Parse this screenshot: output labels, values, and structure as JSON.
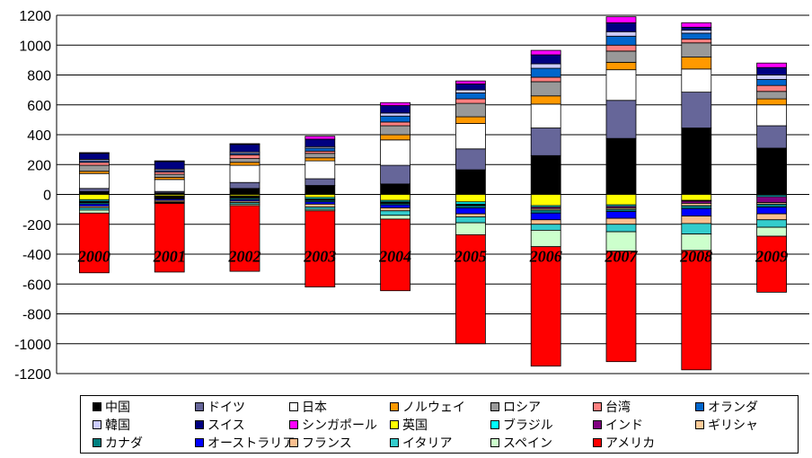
{
  "chart_data": {
    "type": "bar",
    "stacked": true,
    "categories": [
      "2000",
      "2001",
      "2002",
      "2003",
      "2004",
      "2005",
      "2006",
      "2007",
      "2008",
      "2009"
    ],
    "ylim": [
      -1200,
      1200
    ],
    "yticks": [
      1200,
      1000,
      800,
      600,
      400,
      200,
      0,
      -200,
      -400,
      -600,
      -800,
      -1000,
      -1200
    ],
    "grid": true,
    "legend_position": "bottom",
    "series": [
      {
        "name": "中国",
        "color": "#000000",
        "values": [
          20,
          10,
          40,
          60,
          70,
          165,
          260,
          375,
          445,
          310
        ]
      },
      {
        "name": "ドイツ",
        "color": "#666699",
        "values": [
          20,
          10,
          40,
          45,
          125,
          140,
          185,
          255,
          240,
          150
        ]
      },
      {
        "name": "日本",
        "color": "#ffffff",
        "values": [
          100,
          80,
          115,
          120,
          170,
          170,
          160,
          205,
          155,
          140
        ]
      },
      {
        "name": "ノルウェイ",
        "color": "#ff9900",
        "values": [
          15,
          15,
          20,
          20,
          35,
          45,
          55,
          50,
          80,
          40
        ]
      },
      {
        "name": "ロシア",
        "color": "#999999",
        "values": [
          40,
          20,
          25,
          30,
          60,
          90,
          95,
          75,
          95,
          50
        ]
      },
      {
        "name": "台湾",
        "color": "#ff8080",
        "values": [
          20,
          15,
          25,
          15,
          25,
          30,
          30,
          40,
          25,
          40
        ]
      },
      {
        "name": "オランダ",
        "color": "#0066cc",
        "values": [
          10,
          10,
          10,
          20,
          40,
          40,
          60,
          60,
          40,
          40
        ]
      },
      {
        "name": "韓国",
        "color": "#ccccff",
        "values": [
          10,
          10,
          10,
          10,
          20,
          20,
          30,
          30,
          20,
          30
        ]
      },
      {
        "name": "スイス",
        "color": "#000080",
        "values": [
          40,
          50,
          50,
          50,
          50,
          40,
          60,
          60,
          20,
          50
        ]
      },
      {
        "name": "シンガポール",
        "color": "#ff00ff",
        "values": [
          5,
          5,
          5,
          20,
          20,
          20,
          30,
          40,
          30,
          30
        ]
      },
      {
        "name": "英国",
        "color": "#ffff00",
        "values": [
          -35,
          -10,
          -10,
          -20,
          -40,
          -50,
          -75,
          -70,
          -40,
          -5
        ]
      },
      {
        "name": "ブラジル",
        "color": "#00ffff",
        "values": [
          -10,
          -5,
          -5,
          -10,
          -10,
          -15,
          -10,
          -10,
          -5,
          -10
        ]
      },
      {
        "name": "インド",
        "color": "#800080",
        "values": [
          -5,
          -5,
          -5,
          -5,
          -5,
          -5,
          -10,
          -10,
          -15,
          -40
        ]
      },
      {
        "name": "ギリシャ",
        "color": "#ffcc99",
        "values": [
          -5,
          -5,
          -5,
          -5,
          -5,
          -5,
          -10,
          -10,
          -15,
          -10
        ]
      },
      {
        "name": "カナダ",
        "color": "#008080",
        "values": [
          -10,
          -5,
          -10,
          -10,
          -10,
          -15,
          -20,
          -15,
          -20,
          -20
        ]
      },
      {
        "name": "オーストラリア",
        "color": "#0000ff",
        "values": [
          -15,
          -10,
          -10,
          -15,
          -20,
          -40,
          -45,
          -45,
          -50,
          -45
        ]
      },
      {
        "name": "フランス",
        "color": "#fabf8f",
        "values": [
          -10,
          -10,
          -10,
          -20,
          -20,
          -20,
          -30,
          -40,
          -50,
          -40
        ]
      },
      {
        "name": "イタリア",
        "color": "#33cccc",
        "values": [
          -15,
          -5,
          -10,
          -15,
          -30,
          -40,
          -40,
          -50,
          -70,
          -50
        ]
      },
      {
        "name": "スペイン",
        "color": "#ccffcc",
        "values": [
          -20,
          -5,
          -10,
          -10,
          -25,
          -80,
          -110,
          -130,
          -110,
          -60
        ]
      },
      {
        "name": "アメリカ",
        "color": "#ff0000",
        "values": [
          -400,
          -460,
          -440,
          -510,
          -480,
          -730,
          -800,
          -740,
          -800,
          -375
        ]
      }
    ]
  }
}
